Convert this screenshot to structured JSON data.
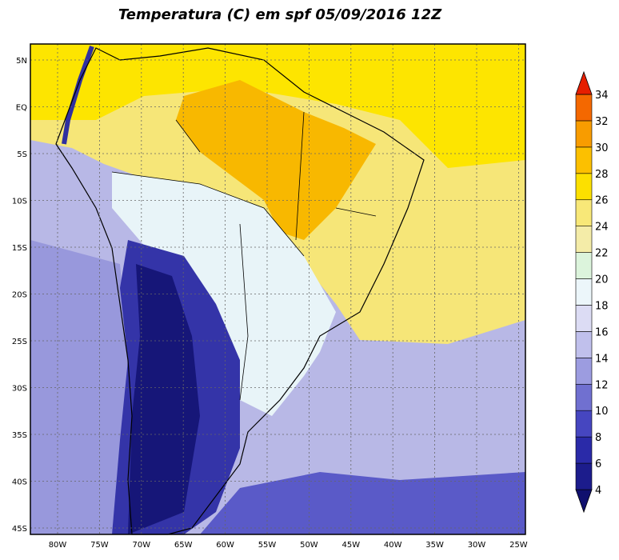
{
  "title": "Temperatura (C) em spf 05/09/2016 12Z",
  "lat_labels": [
    "5N",
    "EQ",
    "5S",
    "10S",
    "15S",
    "20S",
    "25S",
    "30S",
    "35S",
    "40S",
    "45S"
  ],
  "lon_labels": [
    "80W",
    "75W",
    "70W",
    "65W",
    "60W",
    "55W",
    "50W",
    "45W",
    "40W",
    "35W",
    "30W",
    "25W"
  ],
  "colorbar": {
    "labels": [
      4,
      6,
      8,
      10,
      12,
      14,
      16,
      18,
      20,
      22,
      24,
      26,
      28,
      30,
      32,
      34
    ],
    "colors": [
      "#10106e",
      "#1c1c8c",
      "#2a2aa8",
      "#4646c0",
      "#7070d0",
      "#9c9ce0",
      "#c0c0ec",
      "#dcdcf4",
      "#ecf6fa",
      "#dcf4dc",
      "#f4eca8",
      "#f8e878",
      "#fce000",
      "#fcc000",
      "#f89c00",
      "#f46800",
      "#e61e00"
    ]
  }
}
